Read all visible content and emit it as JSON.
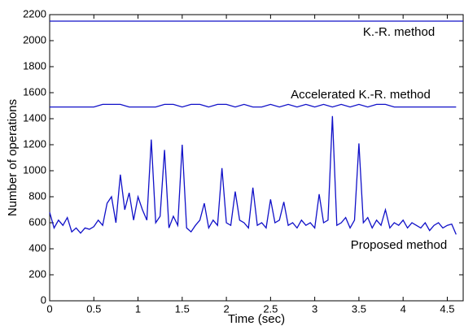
{
  "chart_data": {
    "type": "line",
    "xlabel": "Time (sec)",
    "ylabel": "Number of operations",
    "annotations": [
      "K.-R. method",
      "Accelerated K.-R. method",
      "Proposed method"
    ],
    "xlim": [
      0,
      4.68
    ],
    "ylim": [
      0,
      2200
    ],
    "xticks": [
      0,
      0.5,
      1,
      1.5,
      2,
      2.5,
      3,
      3.5,
      4,
      4.5
    ],
    "yticks": [
      0,
      200,
      400,
      600,
      800,
      1000,
      1200,
      1400,
      1600,
      1800,
      2000,
      2200
    ],
    "grid": false,
    "series": [
      {
        "color": "#1010c8",
        "x": [
          0,
          4.68
        ],
        "values": [
          2150,
          2150
        ]
      },
      {
        "color": "#1010c8",
        "x": [
          0,
          0.1,
          0.2,
          0.3,
          0.4,
          0.5,
          0.6,
          0.7,
          0.8,
          0.9,
          1,
          1.1,
          1.2,
          1.3,
          1.4,
          1.5,
          1.6,
          1.7,
          1.8,
          1.9,
          2,
          2.1,
          2.2,
          2.3,
          2.4,
          2.5,
          2.6,
          2.7,
          2.8,
          2.9,
          3,
          3.1,
          3.2,
          3.3,
          3.4,
          3.5,
          3.6,
          3.7,
          3.8,
          3.9,
          4,
          4.1,
          4.2,
          4.3,
          4.4,
          4.5,
          4.6
        ],
        "values": [
          1490,
          1490,
          1490,
          1490,
          1490,
          1490,
          1510,
          1510,
          1510,
          1490,
          1490,
          1490,
          1490,
          1510,
          1510,
          1490,
          1510,
          1510,
          1490,
          1510,
          1510,
          1490,
          1510,
          1490,
          1490,
          1510,
          1490,
          1510,
          1490,
          1510,
          1490,
          1510,
          1490,
          1510,
          1490,
          1510,
          1490,
          1510,
          1510,
          1490,
          1490,
          1490,
          1490,
          1490,
          1490,
          1490,
          1490
        ]
      },
      {
        "color": "#1010c8",
        "x": [
          0,
          0.05,
          0.1,
          0.15,
          0.2,
          0.25,
          0.3,
          0.35,
          0.4,
          0.45,
          0.5,
          0.55,
          0.6,
          0.65,
          0.7,
          0.75,
          0.8,
          0.85,
          0.9,
          0.95,
          1,
          1.05,
          1.1,
          1.15,
          1.2,
          1.25,
          1.3,
          1.35,
          1.4,
          1.45,
          1.5,
          1.55,
          1.6,
          1.65,
          1.7,
          1.75,
          1.8,
          1.85,
          1.9,
          1.95,
          2,
          2.05,
          2.1,
          2.15,
          2.2,
          2.25,
          2.3,
          2.35,
          2.4,
          2.45,
          2.5,
          2.55,
          2.6,
          2.65,
          2.7,
          2.75,
          2.8,
          2.85,
          2.9,
          2.95,
          3,
          3.05,
          3.1,
          3.15,
          3.2,
          3.25,
          3.3,
          3.35,
          3.4,
          3.45,
          3.5,
          3.55,
          3.6,
          3.65,
          3.7,
          3.75,
          3.8,
          3.85,
          3.9,
          3.95,
          4,
          4.05,
          4.1,
          4.15,
          4.2,
          4.25,
          4.3,
          4.35,
          4.4,
          4.45,
          4.5,
          4.55,
          4.6
        ],
        "values": [
          680,
          560,
          620,
          580,
          640,
          530,
          560,
          520,
          560,
          550,
          570,
          620,
          580,
          750,
          800,
          600,
          970,
          700,
          830,
          620,
          800,
          700,
          620,
          1240,
          600,
          650,
          1160,
          560,
          650,
          580,
          1200,
          560,
          530,
          580,
          620,
          750,
          560,
          620,
          580,
          1020,
          600,
          580,
          840,
          620,
          600,
          560,
          870,
          580,
          600,
          560,
          780,
          600,
          620,
          760,
          580,
          600,
          560,
          620,
          580,
          600,
          560,
          820,
          600,
          620,
          1420,
          580,
          600,
          640,
          560,
          620,
          1210,
          600,
          640,
          560,
          620,
          580,
          700,
          560,
          600,
          580,
          620,
          560,
          600,
          580,
          560,
          600,
          540,
          580,
          600,
          560,
          580,
          590,
          510
        ]
      }
    ]
  }
}
